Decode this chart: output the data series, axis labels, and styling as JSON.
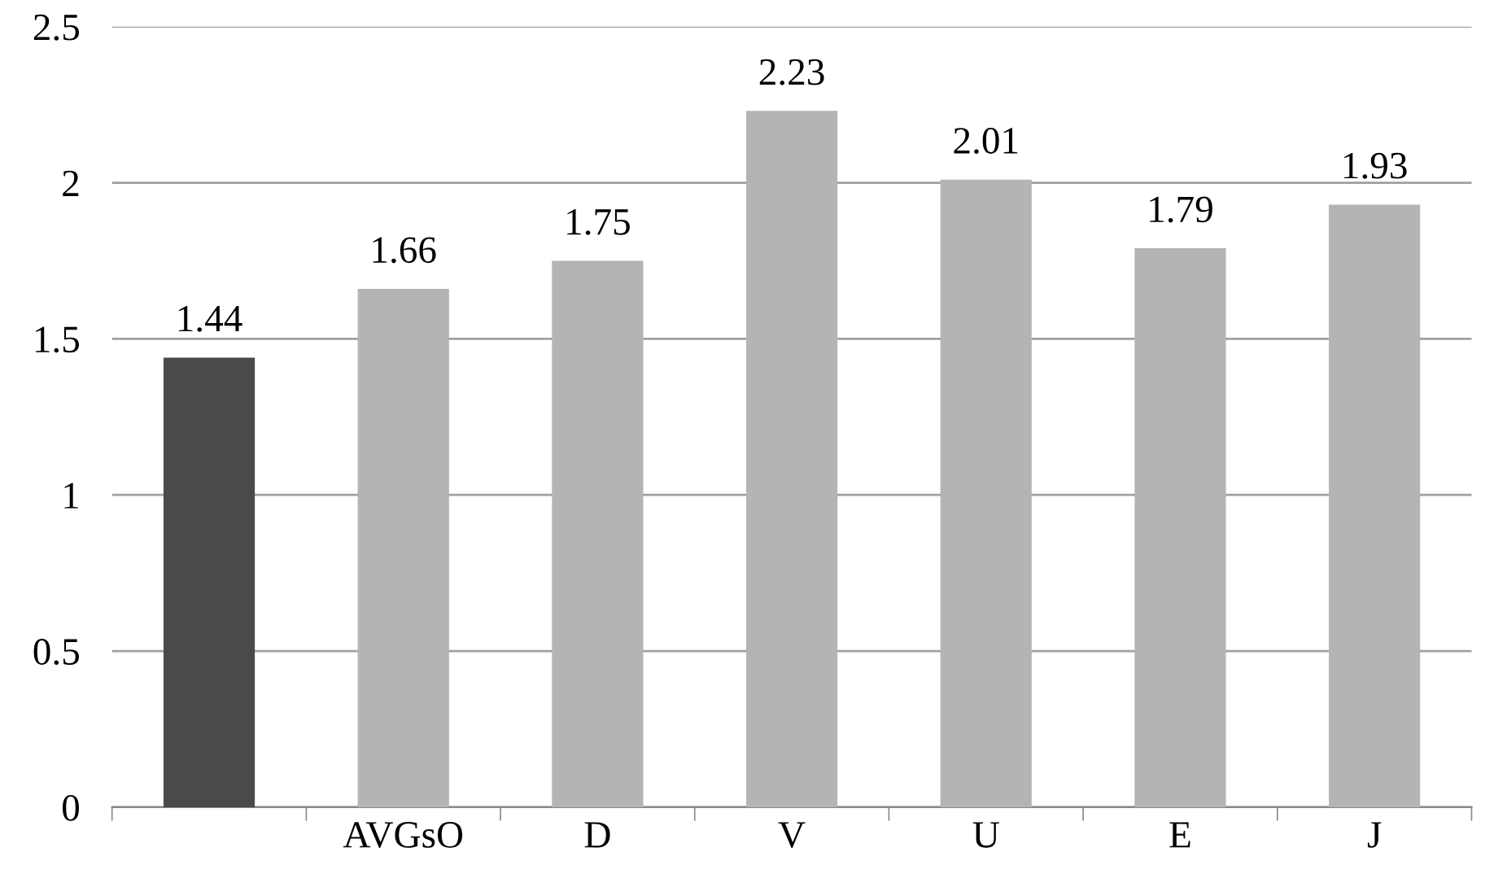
{
  "chart_data": {
    "type": "bar",
    "categories": [
      null,
      "AVGsO",
      "D",
      "V",
      "U",
      "E",
      "J"
    ],
    "values": [
      1.44,
      1.66,
      1.75,
      2.23,
      2.01,
      1.79,
      1.93
    ],
    "colors": [
      "#4a4a4a",
      "#b4b4b4",
      "#b4b4b4",
      "#b4b4b4",
      "#b4b4b4",
      "#b4b4b4",
      "#b4b4b4"
    ],
    "ylim": [
      0,
      2.5
    ],
    "yticks": [
      0,
      0.5,
      1,
      1.5,
      2,
      2.5
    ],
    "grid": "y",
    "data_labels": true
  }
}
